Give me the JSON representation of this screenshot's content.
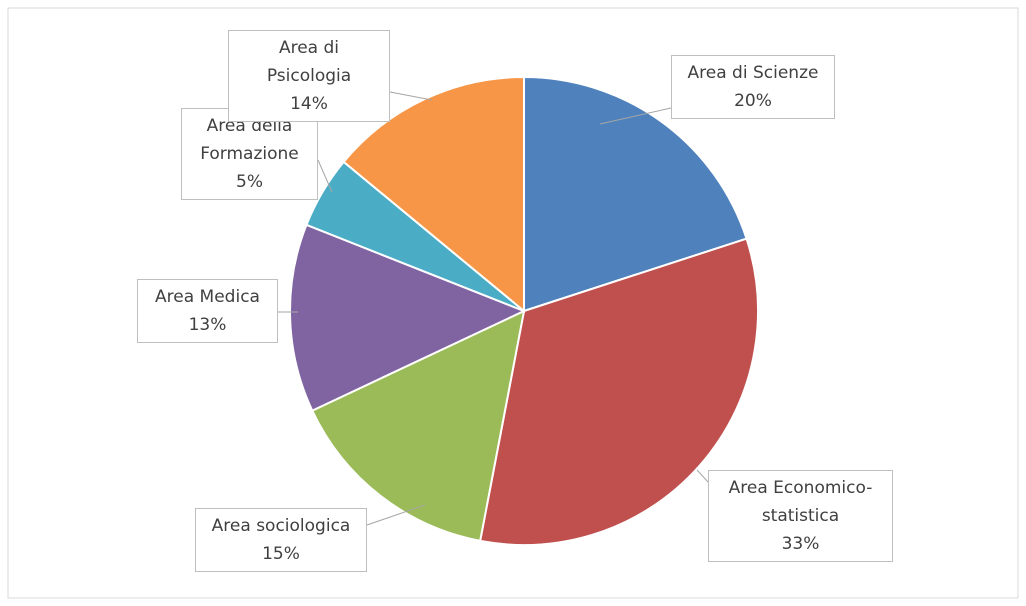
{
  "chart_data": {
    "type": "pie",
    "categories": [
      "Area di Scienze",
      "Area Economico-statistica",
      "Area sociologica",
      "Area Medica",
      "Area della Formazione",
      "Area di Psicologia"
    ],
    "values": [
      20,
      33,
      15,
      13,
      5,
      14
    ],
    "value_labels": [
      "20%",
      "33%",
      "15%",
      "13%",
      "5%",
      "14%"
    ],
    "colors": [
      "#4f81bd",
      "#c0504d",
      "#9bbb59",
      "#8064a2",
      "#4bacc6",
      "#f79646"
    ]
  }
}
